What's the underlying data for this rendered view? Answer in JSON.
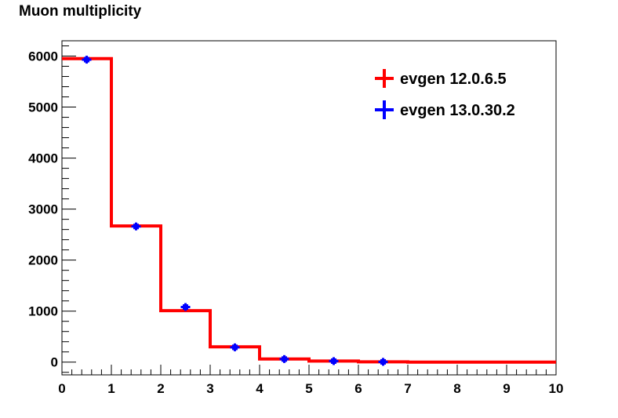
{
  "chart_data": {
    "type": "histogram",
    "title": "Muon multiplicity",
    "xlabel": "",
    "ylabel": "",
    "xlim": [
      0,
      10
    ],
    "ylim": [
      -250,
      6300
    ],
    "x_ticks": [
      0,
      1,
      2,
      3,
      4,
      5,
      6,
      7,
      8,
      9,
      10
    ],
    "y_ticks": [
      0,
      1000,
      2000,
      3000,
      4000,
      5000,
      6000
    ],
    "bin_edges": [
      0,
      1,
      2,
      3,
      4,
      5,
      6,
      7,
      8,
      9,
      10
    ],
    "legend_position": "top-right",
    "series": [
      {
        "name": "evgen 12.0.6.5",
        "style": "step",
        "color": "#ff0000",
        "values": [
          5950,
          2670,
          1010,
          300,
          60,
          20,
          5,
          0,
          0,
          0
        ]
      },
      {
        "name": "evgen 13.0.30.2",
        "style": "markers",
        "color": "#0000ff",
        "x": [
          0.5,
          1.5,
          2.5,
          3.5,
          4.5,
          5.5,
          6.5
        ],
        "values": [
          5930,
          2660,
          1080,
          290,
          60,
          20,
          5
        ],
        "errors": [
          77,
          52,
          33,
          17,
          8,
          5,
          3
        ]
      }
    ]
  }
}
